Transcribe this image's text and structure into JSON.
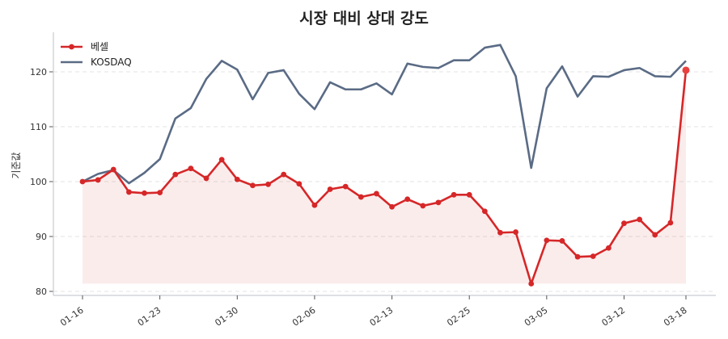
{
  "chart_data": {
    "type": "line",
    "title": "시장 대비 상대 강도",
    "xlabel": "",
    "ylabel": "기준값",
    "ylim": [
      79.3,
      127.2
    ],
    "yticks": [
      80,
      90,
      100,
      110,
      120
    ],
    "grid": true,
    "legend_position": "upper left",
    "x_tick_labels": [
      {
        "index": 0,
        "label": "01-16"
      },
      {
        "index": 5,
        "label": "01-23"
      },
      {
        "index": 10,
        "label": "01-30"
      },
      {
        "index": 15,
        "label": "02-06"
      },
      {
        "index": 20,
        "label": "02-13"
      },
      {
        "index": 25,
        "label": "02-25"
      },
      {
        "index": 30,
        "label": "03-05"
      },
      {
        "index": 35,
        "label": "03-12"
      },
      {
        "index": 39,
        "label": "03-18"
      }
    ],
    "series": [
      {
        "name": "베셀",
        "color": "#d62728",
        "markers": true,
        "fill": true,
        "values": [
          100.0,
          100.3,
          102.2,
          98.1,
          97.9,
          98.0,
          101.3,
          102.4,
          100.6,
          104.0,
          100.4,
          99.3,
          99.5,
          101.3,
          99.6,
          95.7,
          98.6,
          99.1,
          97.2,
          97.8,
          95.4,
          96.8,
          95.6,
          96.2,
          97.6,
          97.6,
          94.6,
          90.7,
          90.8,
          81.4,
          89.3,
          89.2,
          86.3,
          86.4,
          87.9,
          92.4,
          93.1,
          90.3,
          92.5,
          120.3
        ]
      },
      {
        "name": "KOSDAQ",
        "color": "#5a6b85",
        "markers": false,
        "fill": false,
        "values": [
          100.0,
          101.4,
          102.1,
          99.7,
          101.6,
          104.1,
          111.5,
          113.4,
          118.7,
          122.0,
          120.4,
          115.0,
          119.8,
          120.3,
          116.0,
          113.2,
          118.1,
          116.8,
          116.8,
          117.9,
          115.9,
          121.5,
          120.9,
          120.7,
          122.1,
          122.1,
          124.4,
          124.9,
          119.2,
          102.5,
          117.0,
          121.0,
          115.5,
          119.2,
          119.1,
          120.3,
          120.7,
          119.2,
          119.1,
          122.0
        ]
      }
    ]
  },
  "legend": {
    "items": [
      {
        "label": "베셀",
        "color": "#d62728"
      },
      {
        "label": "KOSDAQ",
        "color": "#5a6b85"
      }
    ]
  }
}
